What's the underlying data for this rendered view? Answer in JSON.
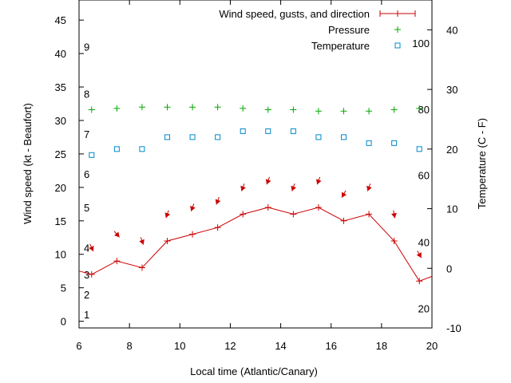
{
  "chart_data": {
    "type": "line",
    "xlabel": "Local time (Atlantic/Canary)",
    "ylabel": "Wind speed (kt - Beaufort)",
    "y2label": "Temperature (C - F)",
    "xlim": [
      6,
      20
    ],
    "ylim": [
      -1,
      48
    ],
    "y2lim": [
      -10,
      45
    ],
    "x_ticks": [
      6,
      8,
      10,
      12,
      14,
      16,
      18,
      20
    ],
    "y_ticks": [
      0,
      5,
      10,
      15,
      20,
      25,
      30,
      35,
      40,
      45
    ],
    "y2_ticks": [
      -10,
      0,
      10,
      20,
      30,
      40
    ],
    "beaufort_labels": [
      {
        "label": "1",
        "y": 1
      },
      {
        "label": "2",
        "y": 4
      },
      {
        "label": "3",
        "y": 7
      },
      {
        "label": "4",
        "y": 11
      },
      {
        "label": "5",
        "y": 17
      },
      {
        "label": "6",
        "y": 22
      },
      {
        "label": "7",
        "y": 28
      },
      {
        "label": "8",
        "y": 34
      },
      {
        "label": "9",
        "y": 41
      }
    ],
    "fahrenheit_labels": [
      {
        "label": "20",
        "y2": -6.7
      },
      {
        "label": "40",
        "y2": 4.4
      },
      {
        "label": "60",
        "y2": 15.6
      },
      {
        "label": "80",
        "y2": 26.7
      },
      {
        "label": "100",
        "y2": 37.8
      }
    ],
    "legend_position": "top-right",
    "series": [
      {
        "name": "Wind speed, gusts, and direction",
        "color": "#cc0000",
        "axis": "y",
        "x": [
          6.0,
          6.5,
          7.5,
          8.5,
          9.5,
          10.5,
          11.5,
          12.5,
          13.5,
          14.5,
          15.5,
          16.5,
          17.5,
          18.5,
          19.5,
          20.0
        ],
        "values": [
          7.5,
          7,
          9,
          8,
          12,
          13,
          14,
          16,
          17,
          16,
          17,
          15,
          16,
          12,
          6,
          6.7
        ]
      },
      {
        "name": "Pressure",
        "color": "#00aa00",
        "axis": "y",
        "x": [
          6.5,
          7.5,
          8.5,
          9.5,
          10.5,
          11.5,
          12.5,
          13.5,
          14.5,
          15.5,
          16.5,
          17.5,
          18.5,
          19.5
        ],
        "values": [
          31.6,
          31.8,
          32.0,
          32.0,
          32.0,
          32.0,
          31.8,
          31.6,
          31.6,
          31.4,
          31.4,
          31.4,
          31.6,
          31.8
        ]
      },
      {
        "name": "Temperature",
        "color": "#0088cc",
        "axis": "y2",
        "x": [
          6.5,
          7.5,
          8.5,
          9.5,
          10.5,
          11.5,
          12.5,
          13.5,
          14.5,
          15.5,
          16.5,
          17.5,
          18.5,
          19.5
        ],
        "values": [
          19,
          20,
          20,
          22,
          22,
          22,
          23,
          23,
          23,
          22,
          22,
          21,
          21,
          20
        ]
      }
    ],
    "wind_direction_arrows": {
      "color": "#cc0000",
      "x": [
        6.5,
        7.5,
        8.5,
        9.5,
        10.5,
        11.5,
        12.5,
        13.5,
        14.5,
        15.5,
        16.5,
        17.5,
        18.5,
        19.5
      ],
      "y": [
        11,
        13,
        12,
        16,
        17,
        18,
        20,
        21,
        20,
        21,
        19,
        20,
        16,
        10
      ],
      "direction_deg": [
        335,
        320,
        340,
        20,
        20,
        20,
        20,
        20,
        20,
        20,
        30,
        20,
        350,
        330
      ]
    }
  }
}
